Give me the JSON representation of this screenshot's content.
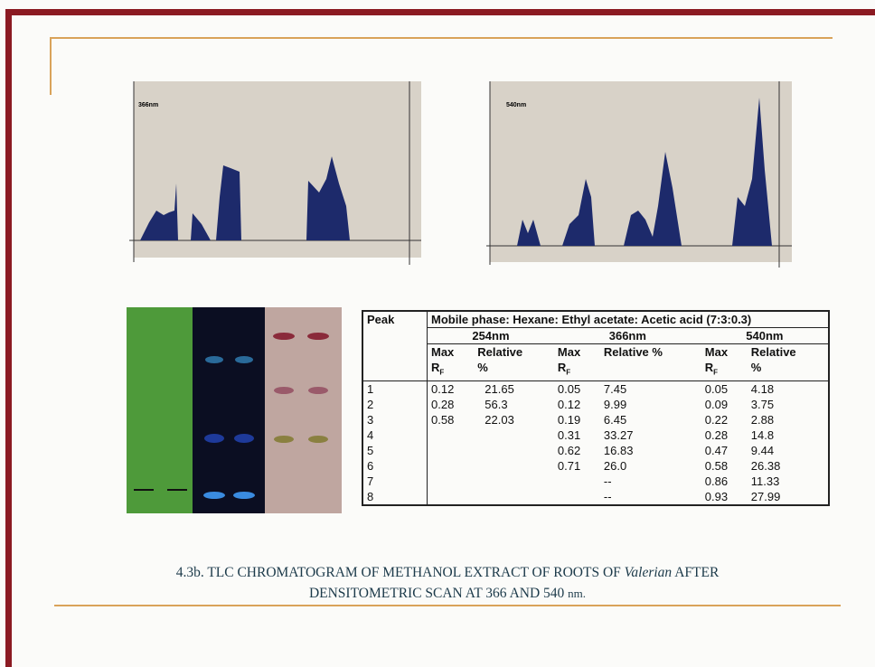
{
  "chromatograms": [
    {
      "label": "366nm"
    },
    {
      "label": "540nm"
    }
  ],
  "table": {
    "peak_header": "Peak",
    "mobile_phase": "Mobile phase: Hexane: Ethyl acetate: Acetic acid (7:3:0.3)",
    "wavelengths": [
      "254nm",
      "366nm",
      "540nm"
    ],
    "columns": [
      {
        "top": "Max",
        "r": "R",
        "sub": "F"
      },
      {
        "top": "Relative",
        "bottom": "%"
      },
      {
        "top": "Max",
        "r": "R",
        "sub": "F"
      },
      {
        "top": "Relative %"
      },
      {
        "top": "Max",
        "r": "R",
        "sub": "F"
      },
      {
        "top": "Relative",
        "bottom": "%"
      }
    ],
    "rows": [
      [
        "1",
        "0.12",
        "21.65",
        "0.05",
        "7.45",
        "0.05",
        "4.18"
      ],
      [
        "2",
        "0.28",
        "56.3",
        "0.12",
        "9.99",
        "0.09",
        "3.75"
      ],
      [
        "3",
        "0.58",
        "22.03",
        "0.19",
        "6.45",
        "0.22",
        "2.88"
      ],
      [
        "4",
        null,
        null,
        "0.31",
        "33.27",
        "0.28",
        "14.8"
      ],
      [
        "5",
        null,
        null,
        "0.62",
        "16.83",
        "0.47",
        "9.44"
      ],
      [
        "6",
        null,
        null,
        "0.71",
        "26.0",
        "0.58",
        "26.38"
      ],
      [
        "7",
        null,
        null,
        null,
        "--",
        "0.86",
        "11.33"
      ],
      [
        "8",
        null,
        null,
        null,
        "--",
        "0.93",
        "27.99"
      ]
    ]
  },
  "caption": {
    "line1_before": "4.3b. TLC CHROMATOGRAM OF METHANOL EXTRACT OF  ROOTS OF ",
    "italic": "Valerian",
    "line1_after": " AFTER",
    "line2": "DENSITOMETRIC  SCAN  AT 366 AND 540 ",
    "unit": "nm."
  }
}
